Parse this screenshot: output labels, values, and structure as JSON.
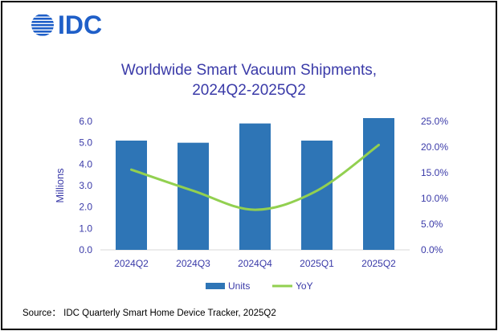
{
  "logo": {
    "text": "IDC",
    "color": "#1f5fc8",
    "icon": "idc-globe-icon"
  },
  "source": "Source： IDC Quarterly Smart Home Device Tracker, 2025Q2",
  "colors": {
    "bar": "#2e75b6",
    "line": "#92d050",
    "text": "#3a3aa8",
    "axis": "#d9d9d9"
  },
  "chart_data": {
    "type": "bar",
    "title": [
      "Worldwide Smart Vacuum Shipments,",
      "2024Q2-2025Q2"
    ],
    "categories": [
      "2024Q2",
      "2024Q3",
      "2024Q4",
      "2025Q1",
      "2025Q2"
    ],
    "series": [
      {
        "name": "Units",
        "type": "bar",
        "axis": "left",
        "values": [
          5.1,
          5.0,
          5.9,
          5.1,
          6.15
        ]
      },
      {
        "name": "YoY",
        "type": "line",
        "axis": "right",
        "values": [
          15.6,
          11.5,
          7.8,
          11.5,
          20.4
        ]
      }
    ],
    "ylabel": "Millions",
    "ylim": [
      0,
      6
    ],
    "yticks": [
      "0.0",
      "1.0",
      "2.0",
      "3.0",
      "4.0",
      "5.0",
      "6.0"
    ],
    "y2lim": [
      0,
      25
    ],
    "y2ticks": [
      "0.0%",
      "5.0%",
      "10.0%",
      "15.0%",
      "20.0%",
      "25.0%"
    ],
    "grid": false,
    "legend": "bottom"
  }
}
